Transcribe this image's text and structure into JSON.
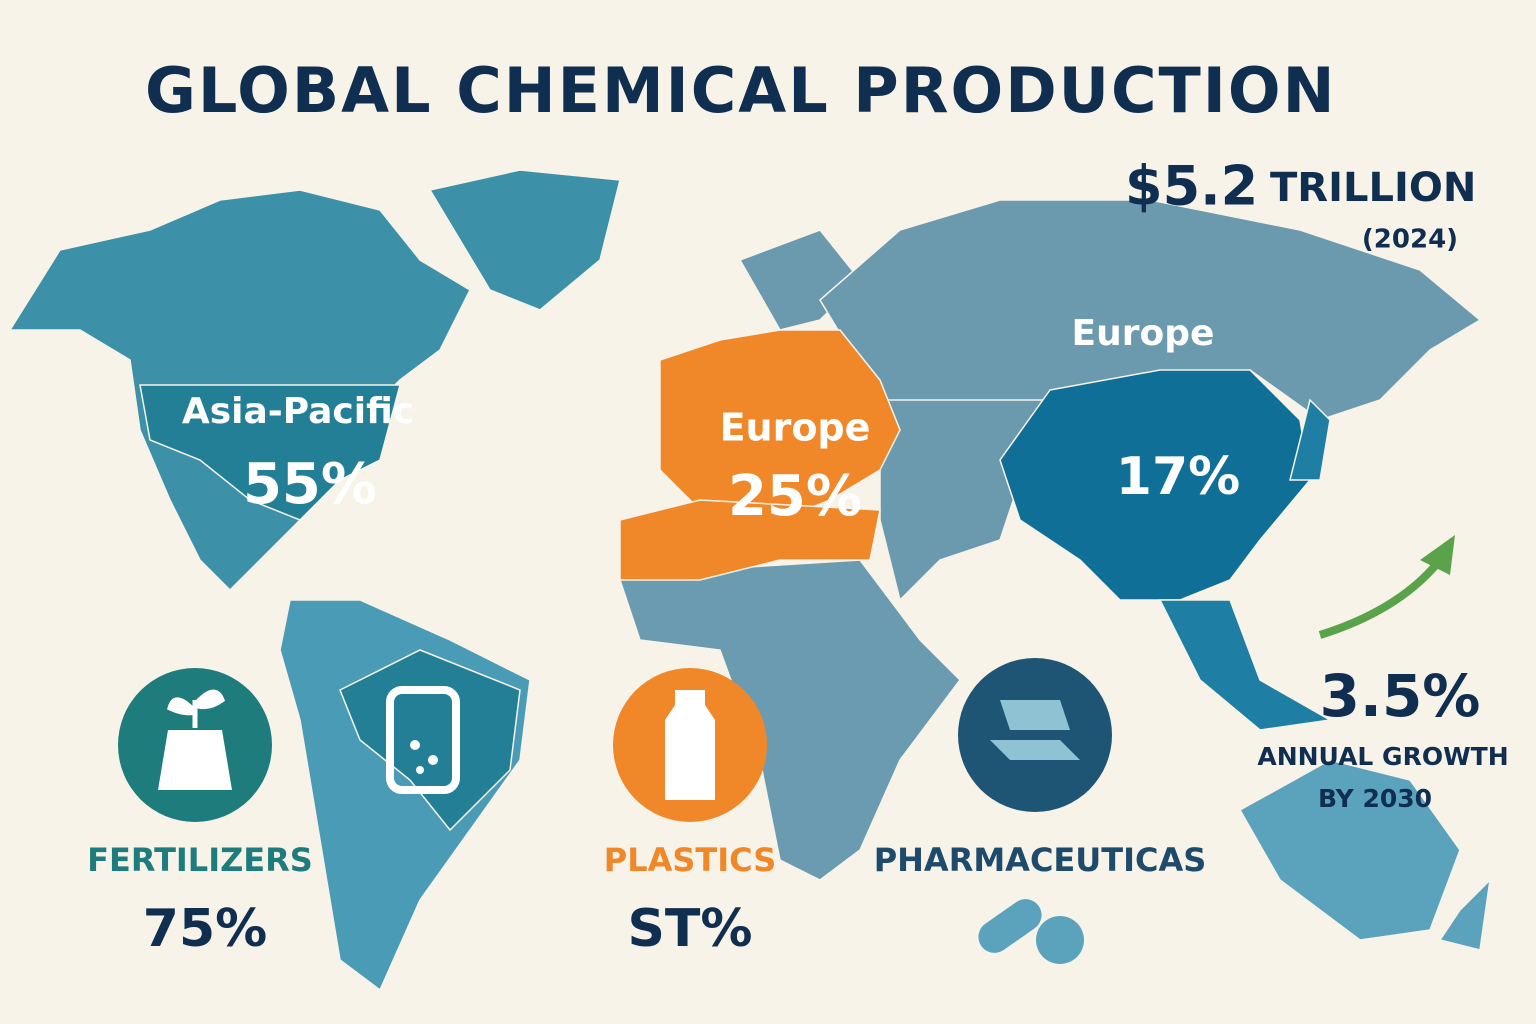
{
  "header": {
    "title": "GLOBAL CHEMICAL PRODUCTION"
  },
  "market_size": {
    "value": "$5.2",
    "unit": "TRILLION",
    "year": "(2024)"
  },
  "regions": [
    {
      "label": "Asia-Pacific",
      "share": "55%"
    },
    {
      "label": "Europe",
      "share": "25%"
    },
    {
      "label": "Europe"
    },
    {
      "share": "17%"
    }
  ],
  "growth": {
    "rate": "3.5%",
    "caption_lines": [
      "ANNUAL GROWTH",
      "BY 2030"
    ]
  },
  "sectors": [
    {
      "name": "FERTILIZERS",
      "share": "75%"
    },
    {
      "name": "PLASTICS",
      "share": "ST%"
    },
    {
      "name": "PHARMACEUTICAS"
    }
  ]
}
